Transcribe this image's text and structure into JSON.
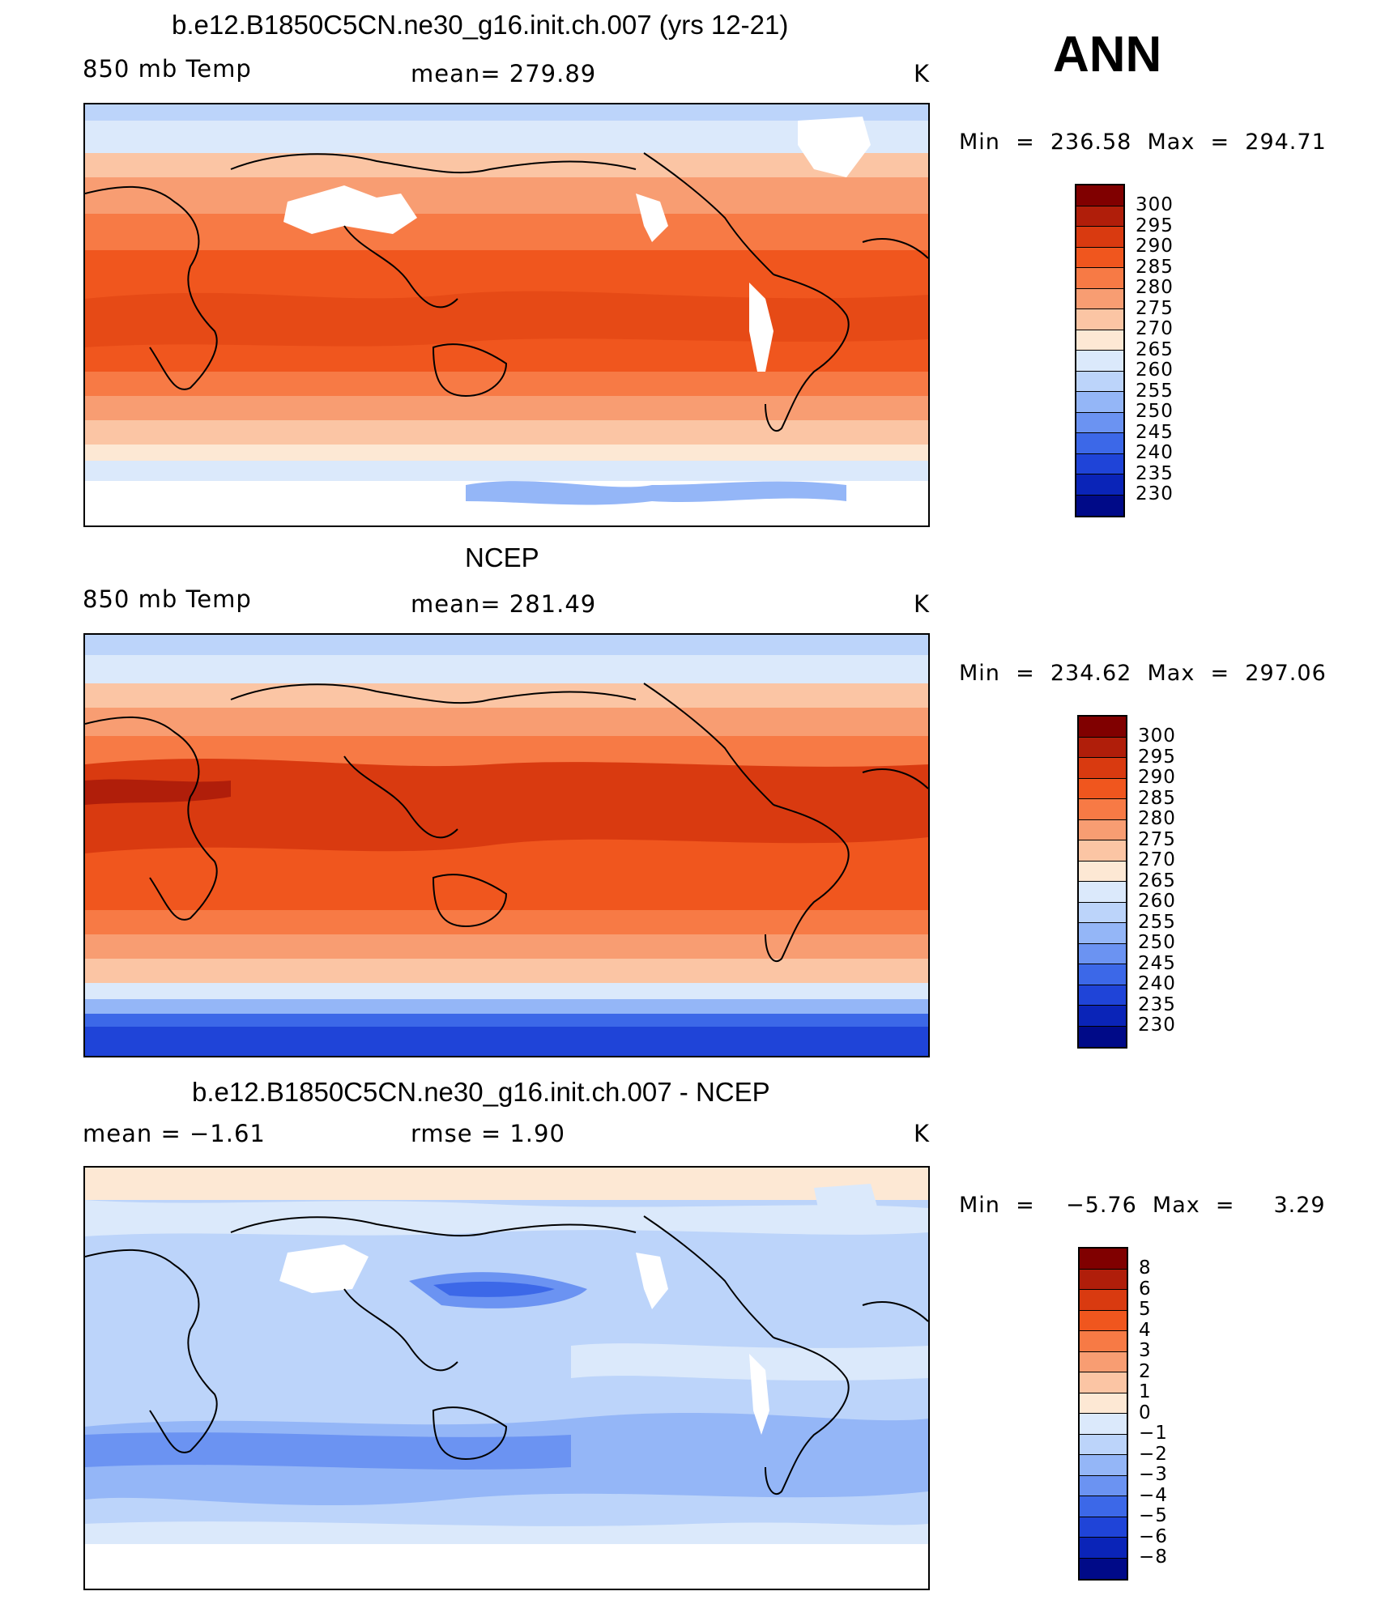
{
  "season": "ANN",
  "panels": [
    {
      "title": "b.e12.B1850C5CN.ne30_g16.init.ch.007 (yrs 12-21)",
      "left_label": "850 mb Temp",
      "center_label": "mean=  279.89",
      "units": "K",
      "minmax": "Min  =  236.58  Max  =  294.71",
      "colorbar_labels": [
        "300",
        "295",
        "290",
        "285",
        "280",
        "275",
        "270",
        "265",
        "260",
        "255",
        "250",
        "245",
        "240",
        "235",
        "230"
      ]
    },
    {
      "title": "NCEP",
      "left_label": "850 mb Temp",
      "center_label": "mean=  281.49",
      "units": "K",
      "minmax": "Min  =  234.62  Max  =  297.06",
      "colorbar_labels": [
        "300",
        "295",
        "290",
        "285",
        "280",
        "275",
        "270",
        "265",
        "260",
        "255",
        "250",
        "245",
        "240",
        "235",
        "230"
      ]
    },
    {
      "title": "b.e12.B1850C5CN.ne30_g16.init.ch.007 - NCEP",
      "left_label": "mean  =    −1.61",
      "center_label": "rmse  =     1.90",
      "units": "K",
      "minmax": "Min  =    −5.76  Max  =     3.29",
      "colorbar_labels": [
        "8",
        "6",
        "5",
        "4",
        "3",
        "2",
        "1",
        "0",
        "−1",
        "−2",
        "−3",
        "−4",
        "−5",
        "−6",
        "−8"
      ]
    }
  ],
  "colors": {
    "temp_scale": [
      "#800000",
      "#b01e0a",
      "#d93a10",
      "#f0561e",
      "#f77a45",
      "#f89d72",
      "#fbc5a4",
      "#fde8d4",
      "#dbe9fb",
      "#bcd4fa",
      "#94b6f7",
      "#6b93f2",
      "#3c68e8",
      "#1f44d8",
      "#0a24b8",
      "#000a88"
    ],
    "land_line": "#000000"
  }
}
